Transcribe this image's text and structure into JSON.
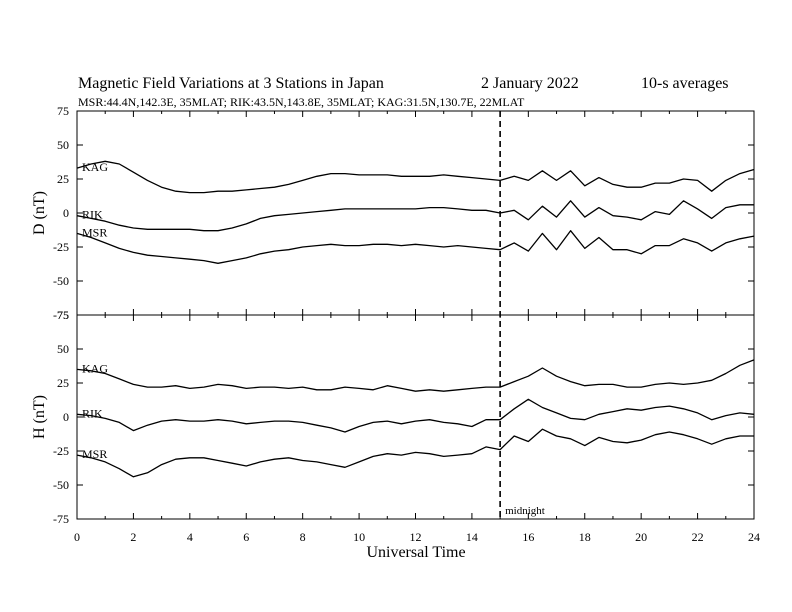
{
  "chart_data": {
    "type": "line",
    "title": "Magnetic Field Variations at 3 Stations in Japan",
    "date": "2   January  2022",
    "averaging": "10-s averages",
    "subtitle": "MSR:44.4N,142.3E, 35MLAT;  RIK:43.5N,143.8E, 35MLAT;  KAG:31.5N,130.7E, 22MLAT",
    "xlabel": "Universal Time",
    "xlim": [
      0,
      24
    ],
    "xticks": [
      0,
      2,
      4,
      6,
      8,
      10,
      12,
      14,
      16,
      18,
      20,
      22,
      24
    ],
    "annotation": {
      "x": 15,
      "text": "midnight"
    },
    "panels": [
      {
        "ylabel": "D (nT)",
        "ylim": [
          -75,
          75
        ],
        "yticks": [
          75,
          50,
          25,
          0,
          -25,
          -50,
          -75
        ],
        "series": [
          {
            "name": "KAG",
            "x": [
              0,
              0.5,
              1,
              1.5,
              2,
              2.5,
              3,
              3.5,
              4,
              4.5,
              5,
              5.5,
              6,
              6.5,
              7,
              7.5,
              8,
              8.5,
              9,
              9.5,
              10,
              10.5,
              11,
              11.5,
              12,
              12.5,
              13,
              13.5,
              14,
              14.5,
              15,
              15.5,
              16,
              16.5,
              17,
              17.5,
              18,
              18.5,
              19,
              19.5,
              20,
              20.5,
              21,
              21.5,
              22,
              22.5,
              23,
              23.5,
              24
            ],
            "values": [
              33,
              36,
              38,
              36,
              30,
              24,
              19,
              16,
              15,
              15,
              16,
              16,
              17,
              18,
              19,
              21,
              24,
              27,
              29,
              29,
              28,
              28,
              28,
              27,
              27,
              27,
              28,
              27,
              26,
              25,
              24,
              27,
              24,
              31,
              24,
              31,
              20,
              26,
              21,
              19,
              19,
              22,
              22,
              25,
              24,
              16,
              24,
              29,
              32
            ]
          },
          {
            "name": "RIK",
            "x": [
              0,
              0.5,
              1,
              1.5,
              2,
              2.5,
              3,
              3.5,
              4,
              4.5,
              5,
              5.5,
              6,
              6.5,
              7,
              7.5,
              8,
              8.5,
              9,
              9.5,
              10,
              10.5,
              11,
              11.5,
              12,
              12.5,
              13,
              13.5,
              14,
              14.5,
              15,
              15.5,
              16,
              16.5,
              17,
              17.5,
              18,
              18.5,
              19,
              19.5,
              20,
              20.5,
              21,
              21.5,
              22,
              22.5,
              23,
              23.5,
              24
            ],
            "values": [
              -2,
              -4,
              -6,
              -9,
              -11,
              -12,
              -12,
              -12,
              -12,
              -13,
              -13,
              -11,
              -8,
              -4,
              -2,
              -1,
              0,
              1,
              2,
              3,
              3,
              3,
              3,
              3,
              3,
              4,
              4,
              3,
              2,
              2,
              0,
              2,
              -5,
              5,
              -3,
              9,
              -3,
              4,
              -2,
              -3,
              -5,
              1,
              -1,
              9,
              3,
              -4,
              4,
              6,
              6
            ]
          },
          {
            "name": "MSR",
            "x": [
              0,
              0.5,
              1,
              1.5,
              2,
              2.5,
              3,
              3.5,
              4,
              4.5,
              5,
              5.5,
              6,
              6.5,
              7,
              7.5,
              8,
              8.5,
              9,
              9.5,
              10,
              10.5,
              11,
              11.5,
              12,
              12.5,
              13,
              13.5,
              14,
              14.5,
              15,
              15.5,
              16,
              16.5,
              17,
              17.5,
              18,
              18.5,
              19,
              19.5,
              20,
              20.5,
              21,
              21.5,
              22,
              22.5,
              23,
              23.5,
              24
            ],
            "values": [
              -15,
              -18,
              -22,
              -26,
              -29,
              -31,
              -32,
              -33,
              -34,
              -35,
              -37,
              -35,
              -33,
              -30,
              -28,
              -27,
              -25,
              -24,
              -23,
              -24,
              -24,
              -23,
              -23,
              -24,
              -23,
              -24,
              -25,
              -24,
              -25,
              -26,
              -27,
              -22,
              -28,
              -15,
              -27,
              -13,
              -26,
              -18,
              -27,
              -27,
              -30,
              -24,
              -24,
              -19,
              -22,
              -28,
              -22,
              -19,
              -17
            ]
          }
        ]
      },
      {
        "ylabel": "H (nT)",
        "ylim": [
          -75,
          75
        ],
        "yticks": [
          75,
          50,
          25,
          0,
          -25,
          -50,
          -75
        ],
        "series": [
          {
            "name": "KAG",
            "x": [
              0,
              0.5,
              1,
              1.5,
              2,
              2.5,
              3,
              3.5,
              4,
              4.5,
              5,
              5.5,
              6,
              6.5,
              7,
              7.5,
              8,
              8.5,
              9,
              9.5,
              10,
              10.5,
              11,
              11.5,
              12,
              12.5,
              13,
              13.5,
              14,
              14.5,
              15,
              15.5,
              16,
              16.5,
              17,
              17.5,
              18,
              18.5,
              19,
              19.5,
              20,
              20.5,
              21,
              21.5,
              22,
              22.5,
              23,
              23.5,
              24
            ],
            "values": [
              35,
              34,
              32,
              28,
              24,
              22,
              22,
              23,
              21,
              22,
              24,
              23,
              21,
              22,
              22,
              21,
              22,
              20,
              20,
              22,
              21,
              20,
              23,
              21,
              19,
              20,
              19,
              20,
              21,
              22,
              22,
              26,
              30,
              36,
              30,
              26,
              23,
              24,
              24,
              22,
              22,
              24,
              25,
              24,
              25,
              27,
              32,
              38,
              42
            ]
          },
          {
            "name": "RIK",
            "x": [
              0,
              0.5,
              1,
              1.5,
              2,
              2.5,
              3,
              3.5,
              4,
              4.5,
              5,
              5.5,
              6,
              6.5,
              7,
              7.5,
              8,
              8.5,
              9,
              9.5,
              10,
              10.5,
              11,
              11.5,
              12,
              12.5,
              13,
              13.5,
              14,
              14.5,
              15,
              15.5,
              16,
              16.5,
              17,
              17.5,
              18,
              18.5,
              19,
              19.5,
              20,
              20.5,
              21,
              21.5,
              22,
              22.5,
              23,
              23.5,
              24
            ],
            "values": [
              2,
              1,
              -1,
              -4,
              -10,
              -6,
              -3,
              -2,
              -3,
              -3,
              -2,
              -3,
              -5,
              -4,
              -3,
              -3,
              -4,
              -6,
              -8,
              -11,
              -7,
              -4,
              -3,
              -5,
              -3,
              -2,
              -4,
              -5,
              -7,
              -2,
              -2,
              6,
              13,
              7,
              3,
              -1,
              -2,
              2,
              4,
              6,
              5,
              7,
              8,
              6,
              3,
              -2,
              1,
              3,
              2
            ]
          },
          {
            "name": "MSR",
            "x": [
              0,
              0.5,
              1,
              1.5,
              2,
              2.5,
              3,
              3.5,
              4,
              4.5,
              5,
              5.5,
              6,
              6.5,
              7,
              7.5,
              8,
              8.5,
              9,
              9.5,
              10,
              10.5,
              11,
              11.5,
              12,
              12.5,
              13,
              13.5,
              14,
              14.5,
              15,
              15.5,
              16,
              16.5,
              17,
              17.5,
              18,
              18.5,
              19,
              19.5,
              20,
              20.5,
              21,
              21.5,
              22,
              22.5,
              23,
              23.5,
              24
            ],
            "values": [
              -28,
              -30,
              -33,
              -38,
              -44,
              -41,
              -35,
              -31,
              -30,
              -30,
              -32,
              -34,
              -36,
              -33,
              -31,
              -30,
              -32,
              -33,
              -35,
              -37,
              -33,
              -29,
              -27,
              -28,
              -26,
              -27,
              -29,
              -28,
              -27,
              -22,
              -24,
              -14,
              -18,
              -9,
              -14,
              -16,
              -21,
              -15,
              -18,
              -19,
              -17,
              -13,
              -11,
              -13,
              -16,
              -20,
              -16,
              -14,
              -14
            ]
          }
        ]
      }
    ]
  }
}
